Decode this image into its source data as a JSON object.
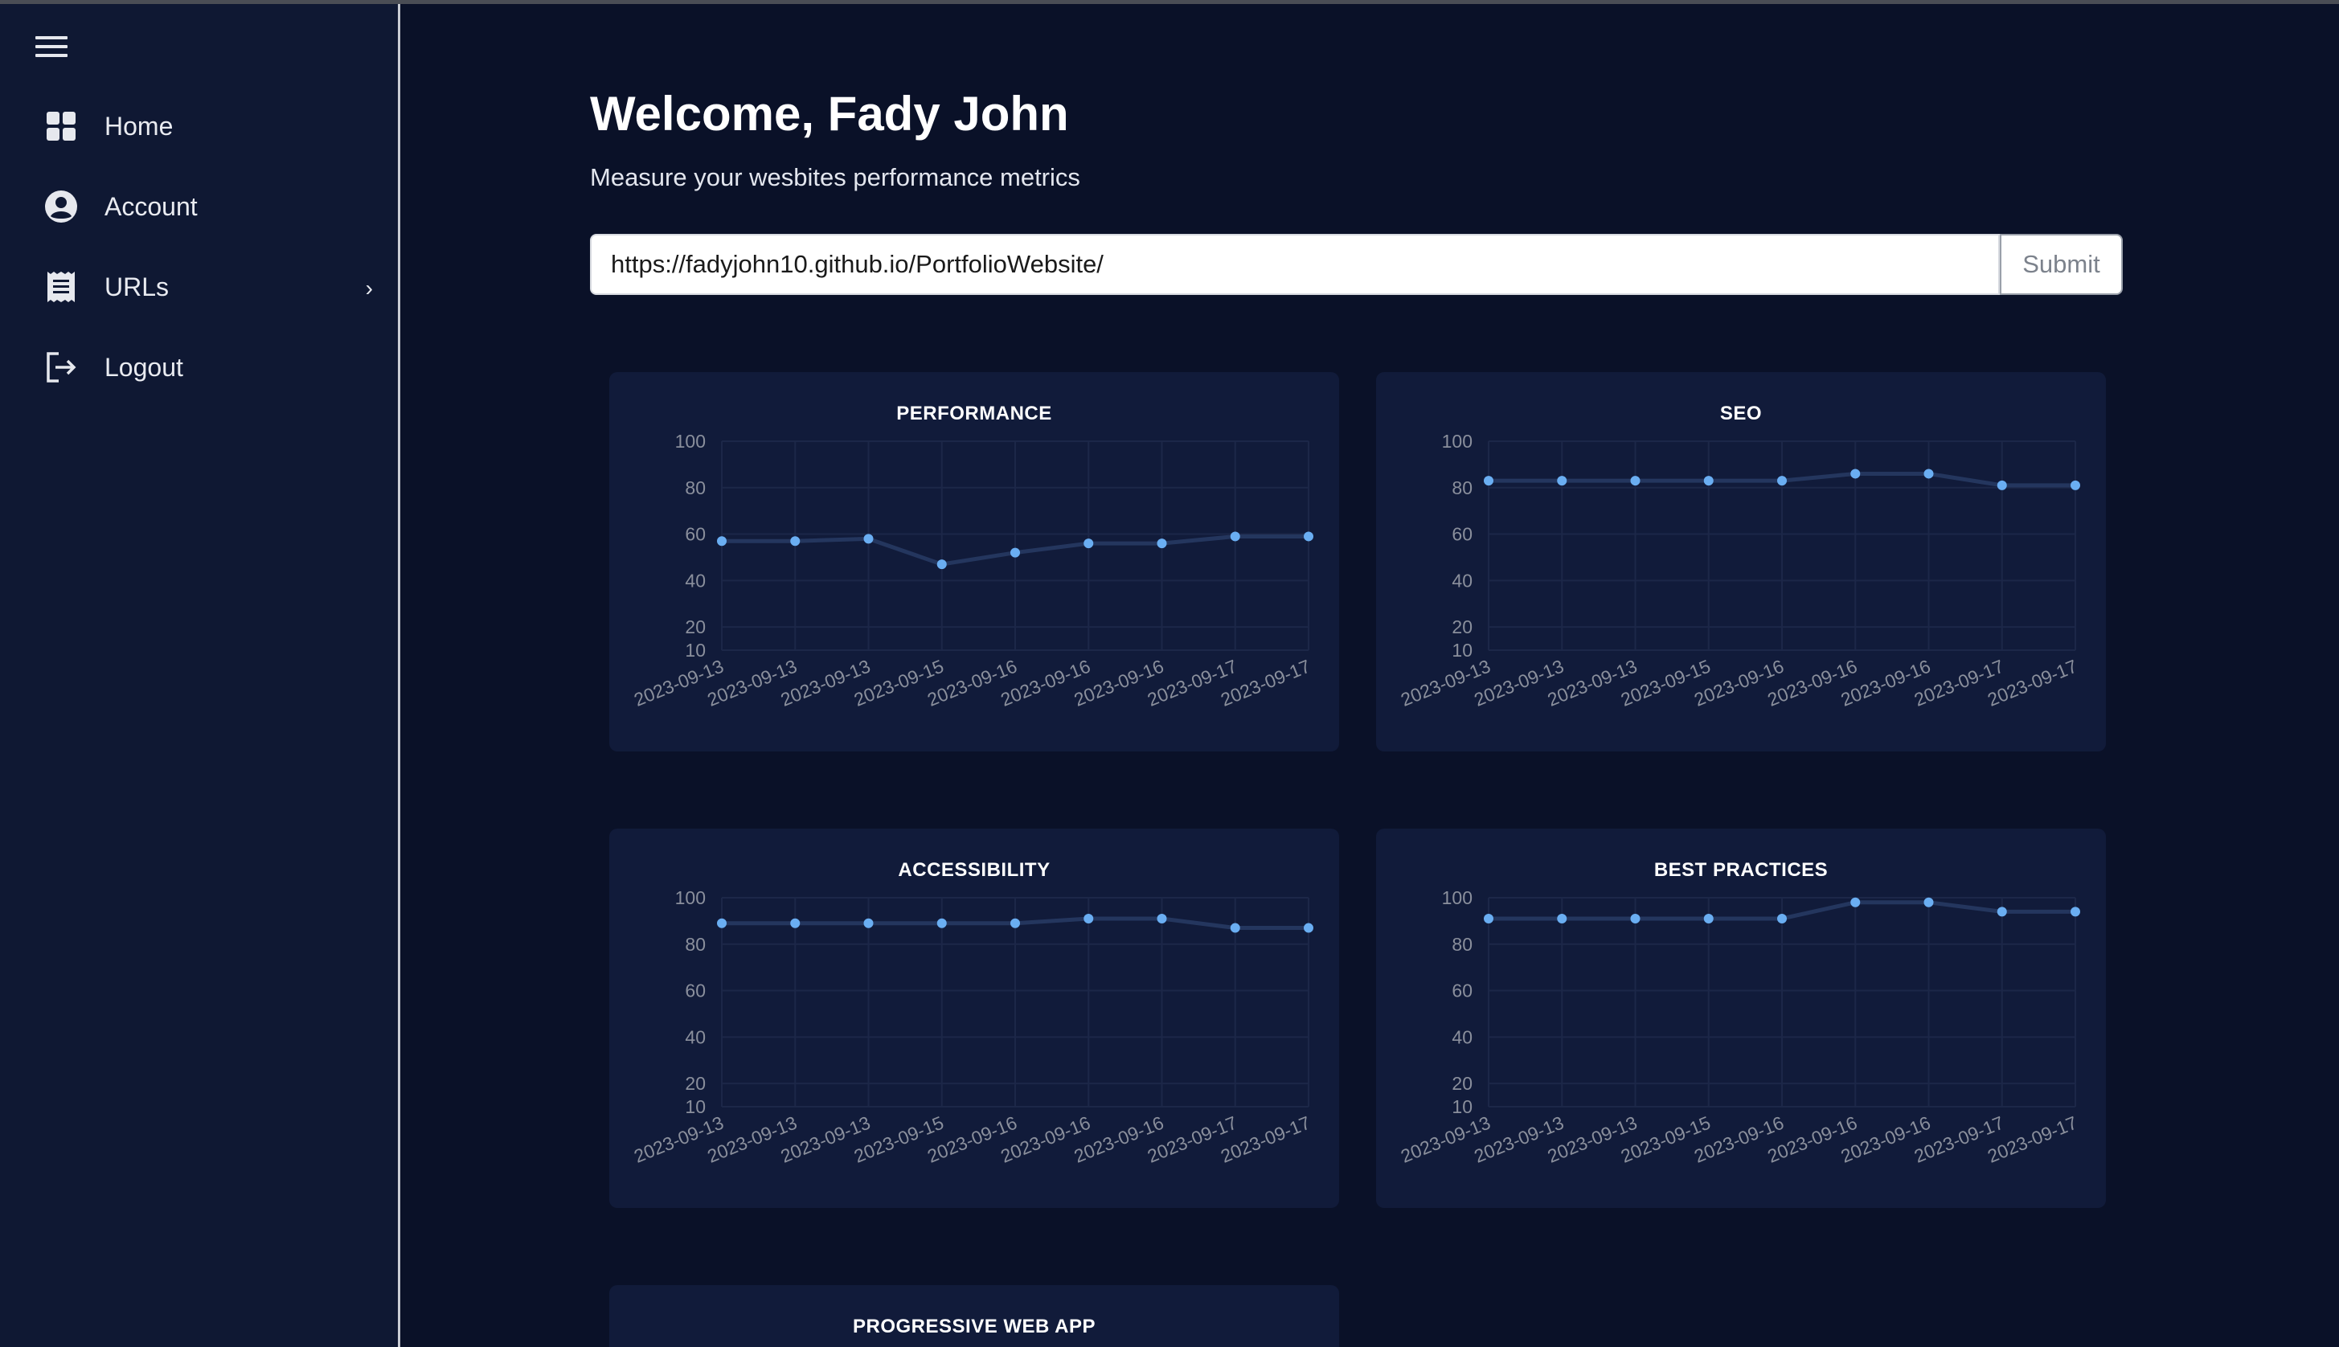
{
  "sidebar": {
    "items": [
      {
        "label": "Home",
        "icon": "grid-icon"
      },
      {
        "label": "Account",
        "icon": "account-circle-icon"
      },
      {
        "label": "URLs",
        "icon": "receipt-icon",
        "has_submenu": true
      },
      {
        "label": "Logout",
        "icon": "logout-icon"
      }
    ]
  },
  "header": {
    "welcome": "Welcome, Fady John",
    "subtitle": "Measure your wesbites performance metrics"
  },
  "url_form": {
    "value": "https://fadyjohn10.github.io/PortfolioWebsite/",
    "submit_label": "Submit"
  },
  "colors": {
    "background": "#0a1128",
    "sidebar": "#0f1833",
    "card": "#111b3a",
    "series": "#6aaef2"
  },
  "chart_data": [
    {
      "type": "line",
      "title": "PERFORMANCE",
      "x": [
        "2023-09-13",
        "2023-09-13",
        "2023-09-13",
        "2023-09-15",
        "2023-09-16",
        "2023-09-16",
        "2023-09-16",
        "2023-09-17",
        "2023-09-17"
      ],
      "values": [
        57,
        57,
        58,
        47,
        52,
        56,
        56,
        59,
        59
      ],
      "yticks": [
        10,
        20,
        40,
        60,
        80,
        100
      ],
      "ylim": [
        10,
        100
      ],
      "grid": true
    },
    {
      "type": "line",
      "title": "SEO",
      "x": [
        "2023-09-13",
        "2023-09-13",
        "2023-09-13",
        "2023-09-15",
        "2023-09-16",
        "2023-09-16",
        "2023-09-16",
        "2023-09-17",
        "2023-09-17"
      ],
      "values": [
        83,
        83,
        83,
        83,
        83,
        86,
        86,
        81,
        81
      ],
      "yticks": [
        10,
        20,
        40,
        60,
        80,
        100
      ],
      "ylim": [
        10,
        100
      ],
      "grid": true
    },
    {
      "type": "line",
      "title": "ACCESSIBILITY",
      "x": [
        "2023-09-13",
        "2023-09-13",
        "2023-09-13",
        "2023-09-15",
        "2023-09-16",
        "2023-09-16",
        "2023-09-16",
        "2023-09-17",
        "2023-09-17"
      ],
      "values": [
        89,
        89,
        89,
        89,
        89,
        91,
        91,
        87,
        87
      ],
      "yticks": [
        10,
        20,
        40,
        60,
        80,
        100
      ],
      "ylim": [
        10,
        100
      ],
      "grid": true
    },
    {
      "type": "line",
      "title": "BEST PRACTICES",
      "x": [
        "2023-09-13",
        "2023-09-13",
        "2023-09-13",
        "2023-09-15",
        "2023-09-16",
        "2023-09-16",
        "2023-09-16",
        "2023-09-17",
        "2023-09-17"
      ],
      "values": [
        91,
        91,
        91,
        91,
        91,
        98,
        98,
        94,
        94
      ],
      "yticks": [
        10,
        20,
        40,
        60,
        80,
        100
      ],
      "ylim": [
        10,
        100
      ],
      "grid": true
    },
    {
      "type": "line",
      "title": "PROGRESSIVE WEB APP"
    }
  ]
}
